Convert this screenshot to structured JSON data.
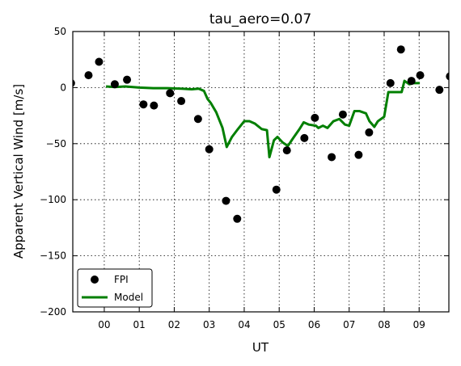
{
  "chart_data": {
    "type": "scatter",
    "title": "tau_aero=0.07",
    "xlabel": "UT",
    "ylabel": "Apparent Vertical Wind [m/s]",
    "xlim": [
      -0.9,
      9.85
    ],
    "ylim": [
      -200,
      50
    ],
    "xticks": [
      0,
      1,
      2,
      3,
      4,
      5,
      6,
      7,
      8,
      9
    ],
    "xtick_labels": [
      "00",
      "01",
      "02",
      "03",
      "04",
      "05",
      "06",
      "07",
      "08",
      "09"
    ],
    "yticks": [
      -200,
      -150,
      -100,
      -50,
      0,
      50
    ],
    "ytick_labels": [
      "−200",
      "−150",
      "−100",
      "−50",
      "0",
      "50"
    ],
    "grid": true,
    "legend_position": "lower-left",
    "colors": {
      "fpi": "#000000",
      "model": "#007f00"
    },
    "series": [
      {
        "name": "FPI",
        "kind": "scatter",
        "x": [
          -0.95,
          -0.45,
          -0.15,
          0.3,
          0.65,
          1.12,
          1.42,
          1.88,
          2.2,
          2.68,
          3.0,
          3.48,
          3.8,
          4.92,
          5.22,
          5.72,
          6.02,
          6.5,
          6.82,
          7.27,
          7.57,
          8.18,
          8.48,
          8.78,
          9.03,
          9.58,
          9.88
        ],
        "y": [
          4,
          11,
          23,
          3,
          7,
          -15,
          -16,
          -5,
          -12,
          -28,
          -55,
          -101,
          -117,
          -91,
          -56,
          -45,
          -27,
          -62,
          -24,
          -60,
          -40,
          4,
          34,
          6,
          11,
          -2,
          10
        ]
      },
      {
        "name": "Model",
        "kind": "line",
        "x": [
          0.05,
          0.3,
          0.6,
          1.0,
          1.4,
          1.8,
          2.2,
          2.5,
          2.7,
          2.85,
          2.95,
          3.05,
          3.2,
          3.38,
          3.5,
          3.65,
          3.82,
          4.0,
          4.15,
          4.3,
          4.5,
          4.65,
          4.72,
          4.85,
          4.95,
          5.1,
          5.25,
          5.4,
          5.58,
          5.7,
          5.85,
          6.05,
          6.12,
          6.25,
          6.38,
          6.55,
          6.72,
          6.88,
          7.0,
          7.15,
          7.3,
          7.48,
          7.58,
          7.72,
          7.82,
          8.0,
          8.12,
          8.3,
          8.5,
          8.58,
          8.72,
          8.85,
          9.02
        ],
        "y": [
          1,
          0.5,
          1,
          0,
          -0.5,
          -0.5,
          -1,
          -1.5,
          -1,
          -3,
          -10,
          -14,
          -22,
          -36,
          -53,
          -44,
          -37,
          -30,
          -30,
          -32,
          -37,
          -38,
          -62,
          -47,
          -44,
          -49,
          -52,
          -45,
          -37,
          -31,
          -33,
          -34,
          -36,
          -34,
          -36,
          -30,
          -28,
          -33,
          -34,
          -21,
          -21,
          -23,
          -30,
          -35,
          -30,
          -26,
          -4,
          -4,
          -4,
          6,
          3,
          4,
          4
        ]
      }
    ]
  }
}
